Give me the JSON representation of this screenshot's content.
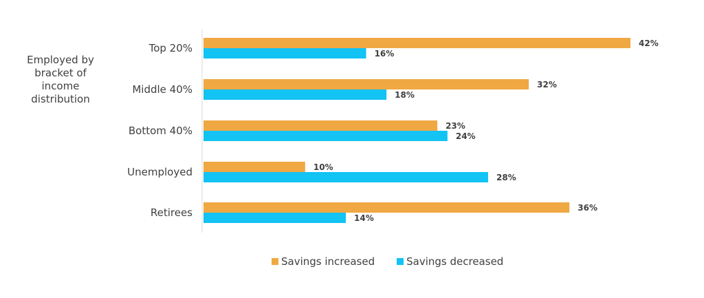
{
  "chart_data": {
    "type": "bar",
    "orientation": "horizontal",
    "group_title_lines": [
      "Employed by",
      "bracket of",
      "income",
      "distribution"
    ],
    "categories": [
      "Top 20%",
      "Middle 40%",
      "Bottom 40%",
      "Unemployed",
      "Retirees"
    ],
    "series": [
      {
        "name": "Savings increased",
        "color": "#f0a843",
        "values": [
          42,
          32,
          23,
          10,
          36
        ],
        "labels": [
          "42%",
          "32%",
          "23%",
          "10%",
          "36%"
        ]
      },
      {
        "name": "Savings decreased",
        "color": "#12c3f4",
        "values": [
          16,
          18,
          24,
          28,
          14
        ],
        "labels": [
          "16%",
          "18%",
          "24%",
          "28%",
          "14%"
        ]
      }
    ],
    "xlim": [
      0,
      42
    ],
    "grid": false,
    "legend_position": "bottom"
  }
}
